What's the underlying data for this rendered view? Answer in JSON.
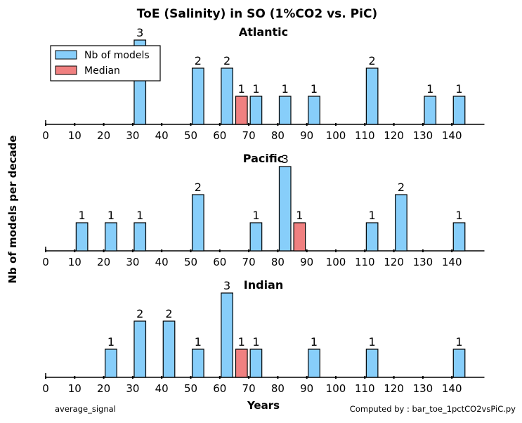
{
  "figure": {
    "title": "ToE (Salinity) in SO (1%CO2 vs. PiC)",
    "ylabel": "Nb of models per decade",
    "xlabel": "Years",
    "footer_left": "average_signal",
    "footer_right": "Computed by : bar_toe_1pctCO2vsPiC.py"
  },
  "colors": {
    "models": "#87cefa",
    "median": "#f08080",
    "edge": "#000000"
  },
  "chart_data": [
    {
      "type": "bar",
      "title": "Atlantic",
      "xlim": [
        0,
        150
      ],
      "ylim": [
        0,
        3
      ],
      "xticks": [
        0,
        10,
        20,
        30,
        40,
        50,
        60,
        70,
        80,
        90,
        100,
        110,
        120,
        130,
        140
      ],
      "legend": {
        "placement": "top-left",
        "entries": [
          "Nb of models",
          "Median"
        ]
      },
      "series": [
        {
          "name": "Nb of models",
          "x": [
            30,
            50,
            60,
            70,
            80,
            90,
            110,
            130,
            140
          ],
          "values": [
            3,
            2,
            2,
            1,
            1,
            1,
            2,
            1,
            1
          ]
        },
        {
          "name": "Median",
          "x": [
            65
          ],
          "values": [
            1
          ]
        }
      ]
    },
    {
      "type": "bar",
      "title": "Pacific",
      "xlim": [
        0,
        150
      ],
      "ylim": [
        0,
        3
      ],
      "xticks": [
        0,
        10,
        20,
        30,
        40,
        50,
        60,
        70,
        80,
        90,
        100,
        110,
        120,
        130,
        140
      ],
      "series": [
        {
          "name": "Nb of models",
          "x": [
            10,
            20,
            30,
            50,
            70,
            80,
            110,
            120,
            140
          ],
          "values": [
            1,
            1,
            1,
            2,
            1,
            3,
            1,
            2,
            1
          ]
        },
        {
          "name": "Median",
          "x": [
            85
          ],
          "values": [
            1
          ]
        }
      ]
    },
    {
      "type": "bar",
      "title": "Indian",
      "xlim": [
        0,
        150
      ],
      "ylim": [
        0,
        3
      ],
      "xticks": [
        0,
        10,
        20,
        30,
        40,
        50,
        60,
        70,
        80,
        90,
        100,
        110,
        120,
        130,
        140
      ],
      "series": [
        {
          "name": "Nb of models",
          "x": [
            20,
            30,
            40,
            50,
            60,
            70,
            90,
            110,
            140
          ],
          "values": [
            1,
            2,
            2,
            1,
            3,
            1,
            1,
            1,
            1
          ]
        },
        {
          "name": "Median",
          "x": [
            65
          ],
          "values": [
            1
          ]
        }
      ]
    }
  ]
}
